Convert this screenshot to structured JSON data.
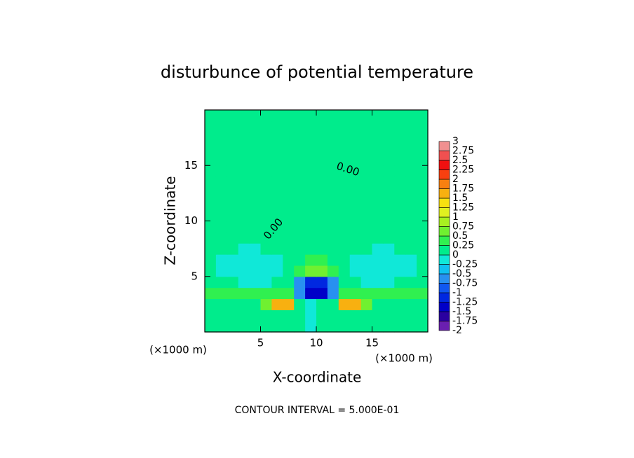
{
  "chart_data": {
    "type": "contour",
    "title": "disturbunce of potential temperature",
    "x_label": "X-coordinate",
    "y_label": "Z-coordinate",
    "x_unit": "(×1000 m)",
    "y_unit": "(×1000 m)",
    "footer": "CONTOUR INTERVAL = 5.000E-01",
    "contour_labels": [
      "0.00",
      "0.00"
    ],
    "xlim": [
      0,
      20
    ],
    "ylim": [
      0,
      20
    ],
    "xticks": [
      5,
      10,
      15
    ],
    "yticks": [
      5,
      10,
      15
    ],
    "x": [
      0.5,
      1.5,
      2.5,
      3.5,
      4.5,
      5.5,
      6.5,
      7.5,
      8.5,
      9.5,
      10.5,
      11.5,
      12.5,
      13.5,
      14.5,
      15.5,
      16.5,
      17.5,
      18.5,
      19.5
    ],
    "y": [
      0.5,
      1.5,
      2.5,
      3.5,
      4.5,
      5.5,
      6.5,
      7.5,
      8.5,
      9.5,
      10.5,
      11.5,
      12.5,
      13.5,
      14.5,
      15.5,
      16.5,
      17.5,
      18.5,
      19.5
    ],
    "z": [
      [
        0.1,
        0.1,
        0.1,
        0.1,
        0.1,
        0.1,
        0.1,
        0.1,
        0.1,
        -0.1,
        0.1,
        0.1,
        0.1,
        0.1,
        0.1,
        0.1,
        0.1,
        0.1,
        0.1,
        0.1
      ],
      [
        0.1,
        0.1,
        0.1,
        0.1,
        0.1,
        0.1,
        0.1,
        0.1,
        0.1,
        -0.1,
        0.1,
        0.1,
        0.1,
        0.1,
        0.1,
        0.1,
        0.1,
        0.1,
        0.1,
        0.1
      ],
      [
        0.15,
        0.15,
        0.15,
        0.15,
        0.15,
        0.6,
        1.6,
        1.6,
        0.2,
        -0.2,
        0.2,
        0.15,
        1.6,
        1.6,
        0.6,
        0.15,
        0.15,
        0.15,
        0.15,
        0.15
      ],
      [
        0.3,
        0.3,
        0.3,
        0.3,
        0.35,
        0.35,
        0.35,
        0.4,
        -0.6,
        -1.3,
        -1.3,
        -0.6,
        0.4,
        0.35,
        0.35,
        0.35,
        0.3,
        0.3,
        0.3,
        0.3
      ],
      [
        0.1,
        0.1,
        0.1,
        -0.1,
        -0.2,
        -0.1,
        0.1,
        0.2,
        -0.7,
        -1.1,
        -1.1,
        -0.7,
        0.2,
        0.1,
        -0.1,
        -0.2,
        -0.1,
        0.1,
        0.1,
        0.1
      ],
      [
        0.05,
        -0.05,
        -0.15,
        -0.2,
        -0.25,
        -0.2,
        -0.1,
        0.05,
        0.3,
        0.5,
        0.5,
        0.3,
        0.05,
        -0.1,
        -0.2,
        -0.25,
        -0.2,
        -0.15,
        -0.05,
        0.05
      ],
      [
        0.05,
        -0.05,
        -0.1,
        -0.15,
        -0.15,
        -0.1,
        -0.05,
        0.1,
        0.2,
        0.3,
        0.3,
        0.2,
        0.1,
        -0.05,
        -0.1,
        -0.15,
        -0.15,
        -0.1,
        -0.05,
        0.05
      ],
      [
        0.08,
        0.05,
        0,
        -0.05,
        -0.05,
        0,
        0.05,
        0.1,
        0.15,
        0.2,
        0.2,
        0.15,
        0.1,
        0.05,
        0,
        -0.05,
        -0.05,
        0,
        0.05,
        0.08
      ],
      [
        0.1,
        0.1,
        0.1,
        0.1,
        0.1,
        0.1,
        0.1,
        0.1,
        0.1,
        0.1,
        0.1,
        0.1,
        0.1,
        0.1,
        0.1,
        0.1,
        0.1,
        0.1,
        0.1,
        0.1
      ],
      [
        0.1,
        0.1,
        0.1,
        0.1,
        0.1,
        0.1,
        0.1,
        0.1,
        0.1,
        0.1,
        0.1,
        0.1,
        0.1,
        0.1,
        0.1,
        0.1,
        0.1,
        0.1,
        0.1,
        0.1
      ],
      [
        0.1,
        0.1,
        0.1,
        0.1,
        0.1,
        0.1,
        0.1,
        0.1,
        0.1,
        0.1,
        0.1,
        0.1,
        0.1,
        0.1,
        0.1,
        0.1,
        0.1,
        0.1,
        0.1,
        0.1
      ],
      [
        0.1,
        0.1,
        0.1,
        0.1,
        0.1,
        0.1,
        0.1,
        0.1,
        0.1,
        0.1,
        0.1,
        0.1,
        0.1,
        0.1,
        0.1,
        0.1,
        0.1,
        0.1,
        0.1,
        0.1
      ],
      [
        0.1,
        0.1,
        0.1,
        0.1,
        0.1,
        0.1,
        0.1,
        0.1,
        0.1,
        0.1,
        0.1,
        0.1,
        0.1,
        0.1,
        0.1,
        0.1,
        0.1,
        0.1,
        0.1,
        0.1
      ],
      [
        0.08,
        0.08,
        0.08,
        0.08,
        0.08,
        0.08,
        0.08,
        0.08,
        0.08,
        0.08,
        0.08,
        0.08,
        0.08,
        0.08,
        0.08,
        0.08,
        0.08,
        0.08,
        0.08,
        0.08
      ],
      [
        0.08,
        0.08,
        0.08,
        0.08,
        0.08,
        0.08,
        0.08,
        0.08,
        0.08,
        0.08,
        0.08,
        0.08,
        0.08,
        0.08,
        0.08,
        0.08,
        0.08,
        0.08,
        0.08,
        0.08
      ],
      [
        0.08,
        0.08,
        0.08,
        0.08,
        0.08,
        0.08,
        0.08,
        0.08,
        0.08,
        0.08,
        0.08,
        0.08,
        0.08,
        0.08,
        0.08,
        0.08,
        0.08,
        0.08,
        0.08,
        0.08
      ],
      [
        0.08,
        0.08,
        0.08,
        0.08,
        0.08,
        0.08,
        0.08,
        0.08,
        0.08,
        0.08,
        0.08,
        0.08,
        0.08,
        0.08,
        0.08,
        0.08,
        0.08,
        0.08,
        0.08,
        0.08
      ],
      [
        0.08,
        0.08,
        0.08,
        0.08,
        0.08,
        0.08,
        0.08,
        0.08,
        0.08,
        0.08,
        0.08,
        0.08,
        0.08,
        0.08,
        0.08,
        0.08,
        0.08,
        0.08,
        0.08,
        0.08
      ],
      [
        0.08,
        0.08,
        0.08,
        0.08,
        0.08,
        0.08,
        0.08,
        0.08,
        0.08,
        0.08,
        0.08,
        0.08,
        0.08,
        0.08,
        0.08,
        0.08,
        0.08,
        0.08,
        0.08,
        0.08
      ],
      [
        0.08,
        0.08,
        0.08,
        0.08,
        0.08,
        0.08,
        0.08,
        0.08,
        0.08,
        0.08,
        0.08,
        0.08,
        0.08,
        0.08,
        0.08,
        0.08,
        0.08,
        0.08,
        0.08,
        0.08
      ]
    ],
    "colorbar": {
      "levels": [
        -2,
        -1.75,
        -1.5,
        -1.25,
        -1,
        -0.75,
        -0.5,
        -0.25,
        0,
        0.25,
        0.5,
        0.75,
        1,
        1.25,
        1.5,
        1.75,
        2,
        2.25,
        2.5,
        2.75,
        3
      ],
      "colors": [
        "#6a1fb0",
        "#2a00a0",
        "#0000c8",
        "#0028e0",
        "#1058f0",
        "#2890f0",
        "#10c0f0",
        "#10e8d8",
        "#00ec8c",
        "#30f050",
        "#70f030",
        "#a8f020",
        "#e0f020",
        "#f8e010",
        "#f8b010",
        "#f88010",
        "#f84010",
        "#f01010",
        "#f05050",
        "#f09090"
      ]
    }
  }
}
